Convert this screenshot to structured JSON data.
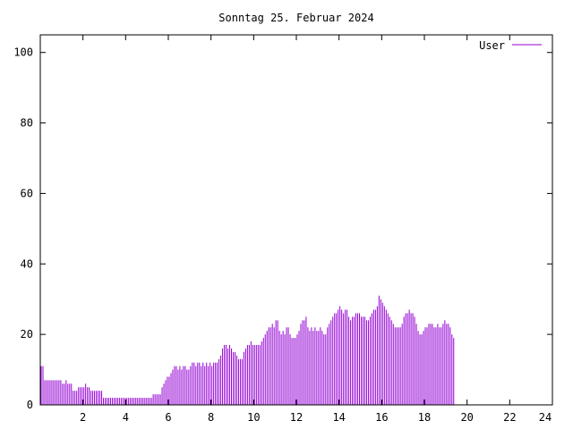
{
  "chart_data": {
    "type": "bar",
    "title": "Sonntag 25. Februar 2024",
    "xlabel": "",
    "ylabel": "",
    "xlim": [
      0,
      24
    ],
    "ylim": [
      0,
      105
    ],
    "x_ticks": [
      2,
      4,
      6,
      8,
      10,
      12,
      14,
      16,
      18,
      20,
      22,
      24
    ],
    "y_ticks": [
      0,
      20,
      40,
      60,
      80,
      100
    ],
    "grid": false,
    "legend": "top-right",
    "bar_color": "#9400d3",
    "series": [
      {
        "name": "User",
        "color": "#9400d3",
        "sample_interval_hours": 0.0833333,
        "values": [
          11,
          11,
          7,
          7,
          7,
          7,
          7,
          7,
          7,
          7,
          7,
          7,
          6,
          6,
          7,
          6,
          6,
          6,
          4,
          4,
          4,
          5,
          5,
          5,
          5,
          6,
          5,
          5,
          4,
          4,
          4,
          4,
          4,
          4,
          4,
          2,
          2,
          2,
          2,
          2,
          2,
          2,
          2,
          2,
          2,
          2,
          2,
          2,
          2,
          2,
          2,
          2,
          2,
          2,
          2,
          2,
          2,
          2,
          2,
          2,
          2,
          2,
          2,
          3,
          3,
          3,
          3,
          3,
          5,
          6,
          7,
          8,
          8,
          9,
          10,
          11,
          11,
          10,
          11,
          10,
          11,
          11,
          10,
          10,
          11,
          12,
          12,
          11,
          12,
          12,
          11,
          12,
          11,
          12,
          11,
          12,
          11,
          12,
          12,
          12,
          13,
          14,
          16,
          17,
          17,
          16,
          17,
          16,
          15,
          15,
          14,
          13,
          13,
          13,
          15,
          16,
          17,
          17,
          18,
          17,
          17,
          17,
          17,
          17,
          18,
          19,
          20,
          21,
          22,
          22,
          23,
          22,
          24,
          24,
          21,
          20,
          21,
          20,
          22,
          22,
          20,
          19,
          19,
          19,
          20,
          21,
          23,
          24,
          24,
          25,
          22,
          21,
          22,
          21,
          22,
          21,
          21,
          22,
          21,
          20,
          20,
          22,
          23,
          24,
          25,
          26,
          26,
          27,
          28,
          27,
          26,
          27,
          27,
          25,
          24,
          25,
          25,
          26,
          26,
          26,
          25,
          25,
          25,
          24,
          24,
          25,
          26,
          27,
          27,
          28,
          31,
          30,
          29,
          28,
          27,
          26,
          25,
          24,
          23,
          22,
          22,
          22,
          22,
          23,
          25,
          26,
          26,
          27,
          26,
          26,
          25,
          23,
          21,
          20,
          20,
          21,
          22,
          22,
          23,
          23,
          23,
          22,
          22,
          23,
          22,
          22,
          23,
          24,
          23,
          23,
          22,
          20,
          19
        ]
      }
    ]
  }
}
